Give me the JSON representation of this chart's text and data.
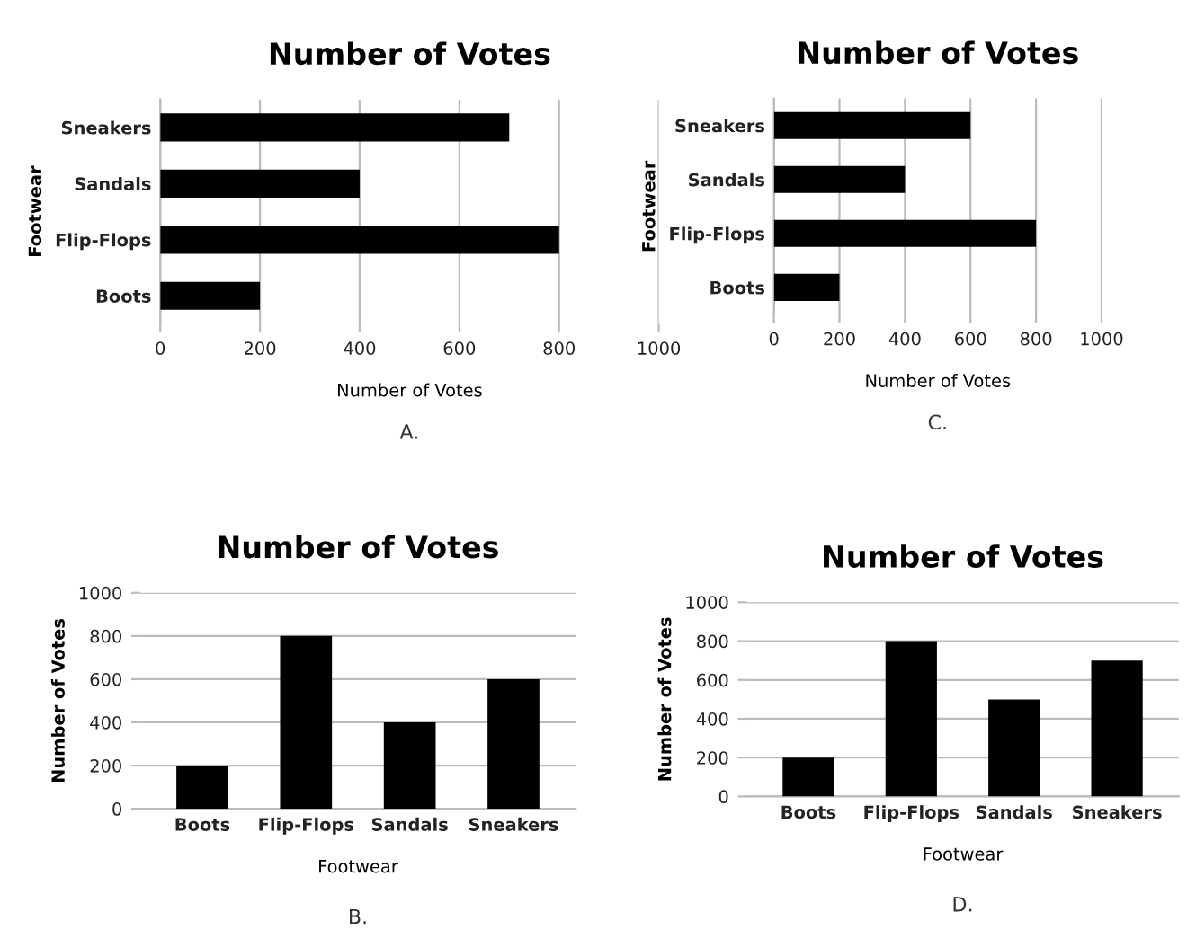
{
  "chart_data": [
    {
      "type": "bar",
      "orientation": "horizontal",
      "title": "Number of Votes",
      "xlabel": "Number of Votes",
      "ylabel": "Footwear",
      "categories": [
        "Sneakers",
        "Sandals",
        "Flip-Flops",
        "Boots"
      ],
      "values": [
        700,
        400,
        800,
        200
      ],
      "color": "#000000",
      "xlim": [
        0,
        1000
      ],
      "xticks": [
        0,
        200,
        400,
        600,
        800,
        1000
      ],
      "grid": "x",
      "annotations": [
        "A."
      ]
    },
    {
      "type": "bar",
      "orientation": "horizontal",
      "title": "Number of Votes",
      "xlabel": "Number of Votes",
      "ylabel": "Footwear",
      "categories": [
        "Sneakers",
        "Sandals",
        "Flip-Flops",
        "Boots"
      ],
      "values": [
        600,
        400,
        800,
        200
      ],
      "color": "#000000",
      "xlim": [
        0,
        1000
      ],
      "xticks": [
        0,
        200,
        400,
        600,
        800,
        1000
      ],
      "grid": "x",
      "annotations": [
        "C."
      ]
    },
    {
      "type": "bar",
      "title": "Number of Votes",
      "xlabel": "Footwear",
      "ylabel": "Number of Votes",
      "categories": [
        "Boots",
        "Flip-Flops",
        "Sandals",
        "Sneakers"
      ],
      "values": [
        200,
        800,
        400,
        600
      ],
      "color": "#000000",
      "ylim": [
        0,
        1000
      ],
      "yticks": [
        0,
        200,
        400,
        600,
        800,
        1000
      ],
      "grid": "y",
      "annotations": [
        "B."
      ]
    },
    {
      "type": "bar",
      "title": "Number of Votes",
      "xlabel": "Footwear",
      "ylabel": "Number of Votes",
      "categories": [
        "Boots",
        "Flip-Flops",
        "Sandals",
        "Sneakers"
      ],
      "values": [
        200,
        800,
        500,
        700
      ],
      "color": "#000000",
      "ylim": [
        0,
        1000
      ],
      "yticks": [
        0,
        200,
        400,
        600,
        800,
        1000
      ],
      "grid": "y",
      "annotations": [
        "D."
      ]
    }
  ]
}
